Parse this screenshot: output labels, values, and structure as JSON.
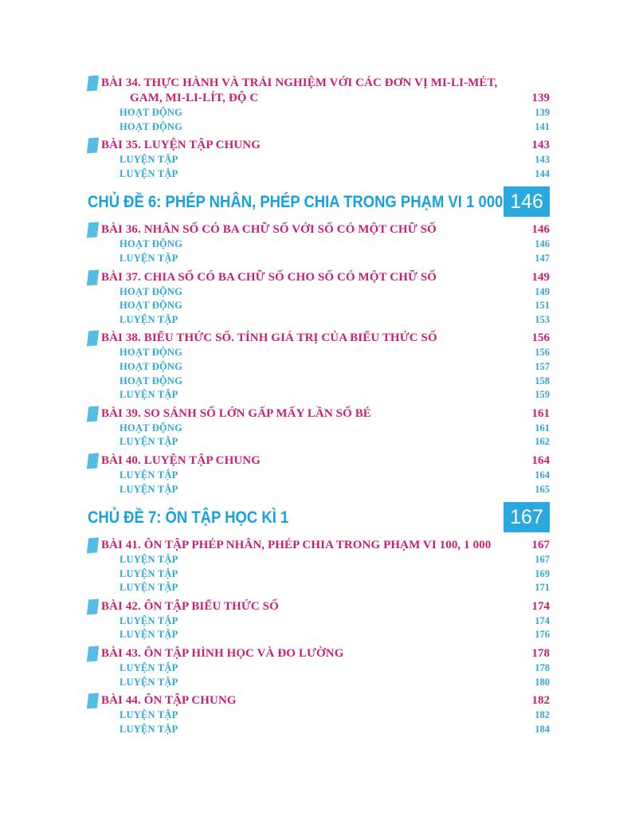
{
  "colors": {
    "entry_pink": "#C81F72",
    "sub_blue": "#2EA8D8",
    "chapter_blue": "#17A2DD",
    "box_blue": "#2AA9E0",
    "box_text": "#FFFFFF",
    "bookmark_blue": "#55BCE8",
    "background": "#FFFFFF"
  },
  "toc": {
    "sections": [
      {
        "chapter": null,
        "entries": [
          {
            "title": "BÀI 34. THỰC HÀNH VÀ TRẢI NGHIỆM VỚI CÁC ĐƠN VỊ MI-LI-MÉT,\nGAM, MI-LI-LÍT, ĐỘ C",
            "page": "139",
            "subs": [
              {
                "label": "HOẠT ĐỘNG",
                "page": "139"
              },
              {
                "label": "HOẠT ĐỘNG",
                "page": "141"
              }
            ]
          },
          {
            "title": "BÀI 35. LUYỆN TẬP CHUNG",
            "page": "143",
            "subs": [
              {
                "label": "LUYỆN TẬP",
                "page": "143"
              },
              {
                "label": "LUYỆN TẬP",
                "page": "144"
              }
            ]
          }
        ]
      },
      {
        "chapter": {
          "title": "CHỦ ĐỀ 6: PHÉP NHÂN, PHÉP CHIA TRONG PHẠM VI 1 000",
          "page": "146"
        },
        "entries": [
          {
            "title": "BÀI 36. NHÂN SỐ CÓ BA CHỮ SỐ VỚI SỐ CÓ MỘT CHỮ SỐ",
            "page": "146",
            "subs": [
              {
                "label": "HOẠT ĐỘNG",
                "page": "146"
              },
              {
                "label": "LUYỆN TẬP",
                "page": "147"
              }
            ]
          },
          {
            "title": "BÀI 37. CHIA SỐ CÓ BA CHỮ SỐ CHO SỐ CÓ MỘT CHỮ SỐ",
            "page": "149",
            "subs": [
              {
                "label": "HOẠT ĐỘNG",
                "page": "149"
              },
              {
                "label": "HOẠT ĐỘNG",
                "page": "151"
              },
              {
                "label": "LUYỆN TẬP",
                "page": "153"
              }
            ]
          },
          {
            "title": "BÀI 38. BIỂU THỨC SỐ. TÍNH GIÁ TRỊ CỦA BIỂU THỨC SỐ",
            "page": "156",
            "subs": [
              {
                "label": "HOẠT ĐỘNG",
                "page": "156"
              },
              {
                "label": "HOẠT ĐỘNG",
                "page": "157"
              },
              {
                "label": "HOẠT ĐỘNG",
                "page": "158"
              },
              {
                "label": "LUYỆN TẬP",
                "page": "159"
              }
            ]
          },
          {
            "title": "BÀI 39. SO SÁNH SỐ LỚN GẤP MẤY LẦN SỐ BÉ",
            "page": "161",
            "subs": [
              {
                "label": "HOẠT ĐỘNG",
                "page": "161"
              },
              {
                "label": "LUYỆN TẬP",
                "page": "162"
              }
            ]
          },
          {
            "title": "BÀI 40. LUYỆN TẬP CHUNG",
            "page": "164",
            "subs": [
              {
                "label": "LUYỆN TẬP",
                "page": "164"
              },
              {
                "label": "LUYỆN TẬP",
                "page": "165"
              }
            ]
          }
        ]
      },
      {
        "chapter": {
          "title": "CHỦ ĐỀ 7: ÔN TẬP HỌC KÌ 1",
          "page": "167"
        },
        "entries": [
          {
            "title": "BÀI 41. ÔN TẬP PHÉP NHÂN, PHÉP CHIA TRONG PHẠM VI 100, 1 000",
            "page": "167",
            "subs": [
              {
                "label": "LUYỆN TẬP",
                "page": "167"
              },
              {
                "label": "LUYỆN TẬP",
                "page": "169"
              },
              {
                "label": "LUYỆN TẬP",
                "page": "171"
              }
            ]
          },
          {
            "title": "BÀI 42. ÔN TẬP BIỂU THỨC SỐ",
            "page": "174",
            "subs": [
              {
                "label": "LUYỆN TẬP",
                "page": "174"
              },
              {
                "label": "LUYỆN TẬP",
                "page": "176"
              }
            ]
          },
          {
            "title": "BÀI 43. ÔN TẬP HÌNH HỌC VÀ ĐO LƯỜNG",
            "page": "178",
            "subs": [
              {
                "label": "LUYỆN TẬP",
                "page": "178"
              },
              {
                "label": "LUYỆN TẬP",
                "page": "180"
              }
            ]
          },
          {
            "title": "BÀI 44. ÔN TẬP CHUNG",
            "page": "182",
            "subs": [
              {
                "label": "LUYỆN TẬP",
                "page": "182"
              },
              {
                "label": "LUYỆN TẬP",
                "page": "184"
              }
            ]
          }
        ]
      }
    ]
  }
}
